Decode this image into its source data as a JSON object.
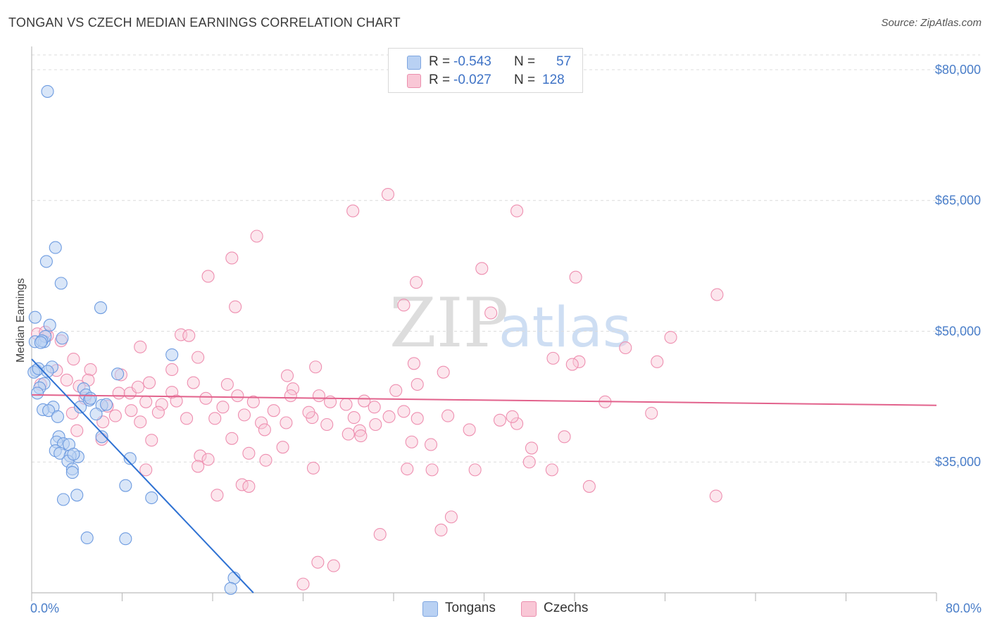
{
  "title": "TONGAN VS CZECH MEDIAN EARNINGS CORRELATION CHART",
  "source": "Source: ZipAtlas.com",
  "watermark": {
    "zip": "ZIP",
    "atlas": "atlas"
  },
  "legend": {
    "rows": [
      {
        "r_label": "R =",
        "r_value": "-0.543",
        "n_label": "N =",
        "n_value": "57",
        "color": "#b9d1f3",
        "border": "#7fa6e0"
      },
      {
        "r_label": "R =",
        "r_value": "-0.027",
        "n_label": "N =",
        "n_value": "128",
        "color": "#f9c7d6",
        "border": "#eb8fae"
      }
    ]
  },
  "bottom_legend": [
    {
      "label": "Tongans",
      "color": "#b9d1f3",
      "border": "#7fa6e0"
    },
    {
      "label": "Czechs",
      "color": "#f9c7d6",
      "border": "#eb8fae"
    }
  ],
  "chart_data": {
    "type": "scatter",
    "title": "TONGAN VS CZECH MEDIAN EARNINGS CORRELATION CHART",
    "xlabel": "",
    "ylabel": "Median Earnings",
    "xlim": [
      0,
      80
    ],
    "ylim": [
      20000,
      82500
    ],
    "x_tick_labels": [
      "0.0%",
      "80.0%"
    ],
    "y_ticks": [
      35000,
      50000,
      65000,
      80000
    ],
    "y_tick_labels": [
      "$35,000",
      "$50,000",
      "$65,000",
      "$80,000"
    ],
    "grid": true,
    "colors": {
      "tongans": "#6d9be0",
      "czechs": "#ee8fb0",
      "tongans_line": "#2f72d3",
      "czechs_line": "#e2628c"
    },
    "series": [
      {
        "name": "Tongans",
        "r": -0.543,
        "n": 57,
        "trend": {
          "x0": 0.0,
          "y0": 46800,
          "x1": 19.6,
          "y1": 20000
        },
        "points": [
          [
            1.4,
            77500
          ],
          [
            0.3,
            51600
          ],
          [
            1.3,
            58000
          ],
          [
            2.1,
            59600
          ],
          [
            2.6,
            55500
          ],
          [
            6.1,
            52700
          ],
          [
            0.3,
            48800
          ],
          [
            1.1,
            48800
          ],
          [
            1.6,
            50700
          ],
          [
            1.2,
            49400
          ],
          [
            2.7,
            49200
          ],
          [
            0.9,
            48900
          ],
          [
            0.4,
            45500
          ],
          [
            0.2,
            45300
          ],
          [
            0.6,
            45700
          ],
          [
            1.1,
            44000
          ],
          [
            0.7,
            43500
          ],
          [
            1.8,
            45900
          ],
          [
            7.6,
            45100
          ],
          [
            12.4,
            47300
          ],
          [
            0.5,
            42900
          ],
          [
            4.6,
            43400
          ],
          [
            4.8,
            42700
          ],
          [
            5.1,
            42100
          ],
          [
            6.2,
            41500
          ],
          [
            4.3,
            41300
          ],
          [
            1.9,
            41300
          ],
          [
            1.0,
            41000
          ],
          [
            1.5,
            40900
          ],
          [
            5.7,
            40500
          ],
          [
            2.4,
            37900
          ],
          [
            2.2,
            37300
          ],
          [
            6.2,
            37900
          ],
          [
            2.8,
            37100
          ],
          [
            2.1,
            36300
          ],
          [
            3.3,
            37000
          ],
          [
            2.5,
            36000
          ],
          [
            4.1,
            35600
          ],
          [
            3.4,
            35700
          ],
          [
            3.2,
            35100
          ],
          [
            8.7,
            35400
          ],
          [
            3.6,
            34200
          ],
          [
            3.6,
            33800
          ],
          [
            8.3,
            32300
          ],
          [
            2.8,
            30700
          ],
          [
            4.0,
            31200
          ],
          [
            10.6,
            30900
          ],
          [
            4.9,
            26300
          ],
          [
            8.3,
            26200
          ],
          [
            17.9,
            21700
          ],
          [
            17.6,
            20500
          ],
          [
            3.7,
            35900
          ],
          [
            5.2,
            42300
          ],
          [
            1.4,
            45400
          ],
          [
            0.8,
            48700
          ],
          [
            6.6,
            41600
          ],
          [
            2.3,
            40200
          ]
        ]
      },
      {
        "name": "Czechs",
        "r": -0.027,
        "n": 128,
        "trend": {
          "x0": 0.0,
          "y0": 42700,
          "x1": 80.0,
          "y1": 41500
        },
        "points": [
          [
            31.5,
            65700
          ],
          [
            28.4,
            63800
          ],
          [
            42.9,
            63800
          ],
          [
            19.9,
            60900
          ],
          [
            17.7,
            58400
          ],
          [
            15.6,
            56300
          ],
          [
            39.8,
            57200
          ],
          [
            48.1,
            56200
          ],
          [
            34.0,
            55600
          ],
          [
            60.6,
            54200
          ],
          [
            18.0,
            52800
          ],
          [
            32.9,
            53000
          ],
          [
            40.6,
            52100
          ],
          [
            0.5,
            49700
          ],
          [
            1.4,
            49500
          ],
          [
            2.6,
            48900
          ],
          [
            13.2,
            49600
          ],
          [
            13.9,
            49500
          ],
          [
            56.5,
            49300
          ],
          [
            9.6,
            48200
          ],
          [
            52.5,
            48100
          ],
          [
            14.7,
            47000
          ],
          [
            3.7,
            46800
          ],
          [
            46.1,
            46900
          ],
          [
            48.4,
            46500
          ],
          [
            55.3,
            46500
          ],
          [
            47.8,
            46200
          ],
          [
            33.8,
            46300
          ],
          [
            25.1,
            45900
          ],
          [
            5.2,
            45600
          ],
          [
            12.4,
            45600
          ],
          [
            36.4,
            45300
          ],
          [
            7.9,
            45000
          ],
          [
            22.6,
            44900
          ],
          [
            3.1,
            44400
          ],
          [
            5.0,
            44400
          ],
          [
            0.8,
            43900
          ],
          [
            10.4,
            44100
          ],
          [
            14.3,
            44100
          ],
          [
            17.3,
            43900
          ],
          [
            34.1,
            43900
          ],
          [
            23.1,
            43400
          ],
          [
            32.2,
            43200
          ],
          [
            12.4,
            43000
          ],
          [
            7.7,
            42900
          ],
          [
            8.7,
            42900
          ],
          [
            22.9,
            42600
          ],
          [
            25.4,
            42600
          ],
          [
            15.4,
            42300
          ],
          [
            4.7,
            42300
          ],
          [
            10.1,
            41900
          ],
          [
            19.6,
            41900
          ],
          [
            26.4,
            41900
          ],
          [
            29.4,
            42000
          ],
          [
            30.3,
            41300
          ],
          [
            27.8,
            41600
          ],
          [
            16.9,
            41300
          ],
          [
            11.5,
            41600
          ],
          [
            6.7,
            41400
          ],
          [
            8.8,
            40900
          ],
          [
            21.4,
            40900
          ],
          [
            11.2,
            40700
          ],
          [
            3.6,
            40600
          ],
          [
            7.4,
            40300
          ],
          [
            18.8,
            40400
          ],
          [
            24.8,
            40100
          ],
          [
            28.5,
            40100
          ],
          [
            34.1,
            40000
          ],
          [
            31.6,
            40200
          ],
          [
            36.8,
            40300
          ],
          [
            41.4,
            39800
          ],
          [
            16.2,
            40000
          ],
          [
            13.7,
            40000
          ],
          [
            22.5,
            39500
          ],
          [
            6.3,
            39600
          ],
          [
            9.6,
            39600
          ],
          [
            20.3,
            39500
          ],
          [
            26.1,
            39300
          ],
          [
            30.4,
            39300
          ],
          [
            42.9,
            39400
          ],
          [
            38.7,
            38700
          ],
          [
            20.6,
            38700
          ],
          [
            29.0,
            38600
          ],
          [
            4.0,
            38600
          ],
          [
            17.7,
            37700
          ],
          [
            6.2,
            37600
          ],
          [
            29.1,
            38000
          ],
          [
            10.6,
            37500
          ],
          [
            33.6,
            37300
          ],
          [
            22.2,
            36700
          ],
          [
            35.3,
            37000
          ],
          [
            44.2,
            36600
          ],
          [
            19.2,
            36000
          ],
          [
            14.9,
            35700
          ],
          [
            15.6,
            35300
          ],
          [
            20.7,
            35200
          ],
          [
            44.0,
            35000
          ],
          [
            14.7,
            34500
          ],
          [
            24.9,
            34300
          ],
          [
            33.2,
            34200
          ],
          [
            35.4,
            34100
          ],
          [
            39.2,
            34100
          ],
          [
            46.0,
            34100
          ],
          [
            10.1,
            34100
          ],
          [
            18.6,
            32400
          ],
          [
            19.2,
            32200
          ],
          [
            49.3,
            32200
          ],
          [
            16.4,
            31200
          ],
          [
            60.5,
            31100
          ],
          [
            37.1,
            28700
          ],
          [
            36.2,
            27200
          ],
          [
            30.8,
            26700
          ],
          [
            25.3,
            23500
          ],
          [
            26.7,
            23100
          ],
          [
            24.0,
            21000
          ],
          [
            1.2,
            49900
          ],
          [
            2.2,
            45500
          ],
          [
            4.2,
            43700
          ],
          [
            9.4,
            43600
          ],
          [
            12.8,
            42000
          ],
          [
            18.2,
            42600
          ],
          [
            24.5,
            40700
          ],
          [
            28.0,
            38200
          ],
          [
            32.9,
            40800
          ],
          [
            42.5,
            40200
          ],
          [
            47.1,
            37900
          ],
          [
            50.7,
            41900
          ],
          [
            54.8,
            40600
          ]
        ]
      }
    ]
  }
}
